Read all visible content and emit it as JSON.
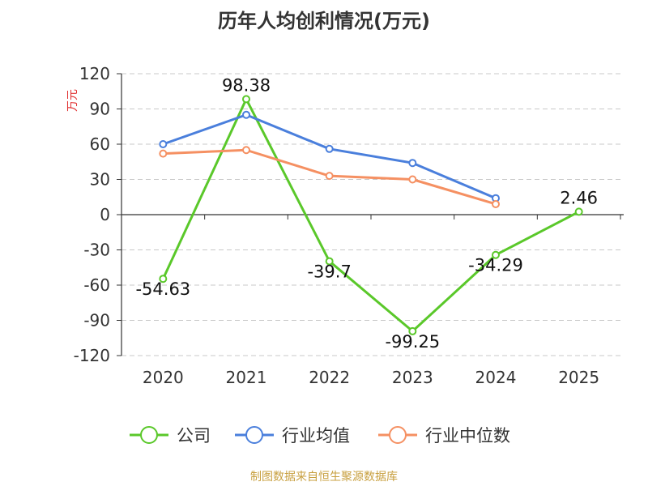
{
  "title": "历年人均创利情况(万元)",
  "footer": "制图数据来自恒生聚源数据库",
  "chart_data": {
    "type": "line",
    "title": "历年人均创利情况(万元)",
    "ylabel": "万元",
    "xlabel": "",
    "categories": [
      "2020",
      "2021",
      "2022",
      "2023",
      "2024",
      "2025"
    ],
    "ylim": [
      -120,
      120
    ],
    "yticks": [
      120,
      90,
      60,
      30,
      0,
      -30,
      -60,
      -90,
      -120
    ],
    "grid": true,
    "legend_position": "bottom",
    "series": [
      {
        "name": "公司",
        "color": "#5ac82a",
        "values": [
          -54.63,
          98.38,
          -39.7,
          -99.25,
          -34.29,
          2.46
        ],
        "labels": [
          "-54.63",
          "98.38",
          "-39.7",
          "-99.25",
          "-34.29",
          "2.46"
        ]
      },
      {
        "name": "行业均值",
        "color": "#4a7fdc",
        "values": [
          60,
          85,
          56,
          44,
          14,
          null
        ]
      },
      {
        "name": "行业中位数",
        "color": "#f59062",
        "values": [
          52,
          55,
          33,
          30,
          9,
          null
        ]
      }
    ]
  }
}
